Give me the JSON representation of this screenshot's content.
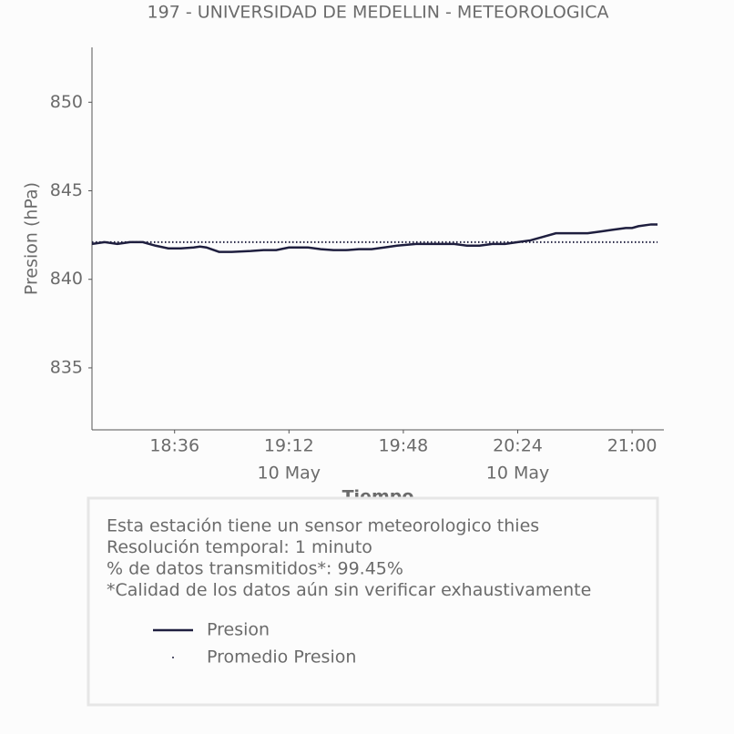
{
  "chart_data": {
    "type": "line",
    "title": "197 - UNIVERSIDAD DE MEDELLIN - METEOROLOGICA",
    "y_label": "Presion (hPa)",
    "x_label": "Tiempo",
    "x": [
      "18:10",
      "18:14",
      "18:18",
      "18:22",
      "18:26",
      "18:30",
      "18:34",
      "18:38",
      "18:42",
      "18:44",
      "18:46",
      "18:50",
      "18:54",
      "19:00",
      "19:04",
      "19:08",
      "19:12",
      "19:18",
      "19:22",
      "19:26",
      "19:30",
      "19:34",
      "19:38",
      "19:42",
      "19:46",
      "19:52",
      "19:58",
      "20:04",
      "20:08",
      "20:12",
      "20:16",
      "20:20",
      "20:24",
      "20:28",
      "20:32",
      "20:36",
      "20:40",
      "20:46",
      "20:50",
      "20:54",
      "20:58",
      "21:00",
      "21:02",
      "21:06",
      "21:08"
    ],
    "series": [
      {
        "name": "Presion",
        "color": "#1f1f3f",
        "style": "solid",
        "values": [
          842.0,
          842.1,
          842.0,
          842.1,
          842.1,
          841.9,
          841.75,
          841.75,
          841.8,
          841.85,
          841.8,
          841.55,
          841.55,
          841.6,
          841.65,
          841.65,
          841.8,
          841.8,
          841.7,
          841.65,
          841.65,
          841.7,
          841.7,
          841.8,
          841.9,
          842.0,
          842.0,
          842.0,
          841.9,
          841.9,
          842.0,
          842.0,
          842.1,
          842.2,
          842.4,
          842.6,
          842.6,
          842.6,
          842.7,
          842.8,
          842.9,
          842.9,
          843.0,
          843.1,
          843.1
        ]
      },
      {
        "name": "Promedio Presion",
        "color": "#1f1f3f",
        "style": "dotted",
        "x": [
          "18:10",
          "21:08"
        ],
        "values": [
          842.1,
          842.1
        ]
      }
    ],
    "xlim": [
      "18:10",
      "21:10"
    ],
    "xticks": [
      "18:36",
      "19:12",
      "19:48",
      "20:24",
      "21:00"
    ],
    "xtick_sublabels": [
      null,
      "10 May",
      null,
      "10 May",
      null
    ],
    "ylim": [
      831.5,
      853.1
    ],
    "yticks": [
      835,
      840,
      845,
      850
    ],
    "grid": false,
    "annotations": [
      "Esta estación tiene un sensor meteorologico thies",
      "Resolución temporal: 1 minuto",
      "% de datos transmitidos*: 99.45%",
      "*Calidad de los datos aún sin verificar exhaustivamente"
    ],
    "legend": "bottom"
  }
}
